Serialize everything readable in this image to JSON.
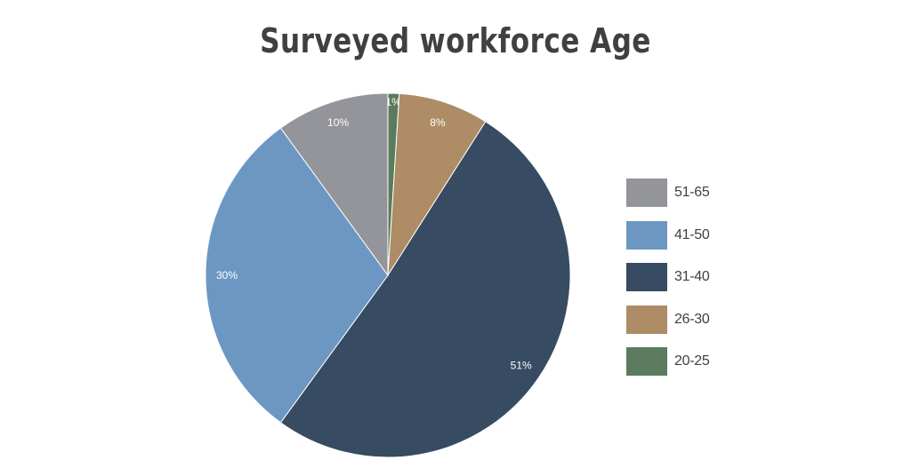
{
  "chart_data": {
    "type": "pie",
    "title": "Surveyed workforce Age",
    "start_angle_deg": 0,
    "direction": "clockwise",
    "slices": [
      {
        "label": "20-25",
        "value": 1,
        "display": "1%",
        "color": "#5a7b5e"
      },
      {
        "label": "26-30",
        "value": 8,
        "display": "8%",
        "color": "#ad8c66"
      },
      {
        "label": "31-40",
        "value": 51,
        "display": "51%",
        "color": "#374b62"
      },
      {
        "label": "41-50",
        "value": 30,
        "display": "30%",
        "color": "#6c97c2"
      },
      {
        "label": "51-65",
        "value": 10,
        "display": "10%",
        "color": "#94959a"
      }
    ],
    "legend": {
      "placement": "right",
      "order": [
        "51-65",
        "41-50",
        "31-40",
        "26-30",
        "20-25"
      ]
    }
  }
}
